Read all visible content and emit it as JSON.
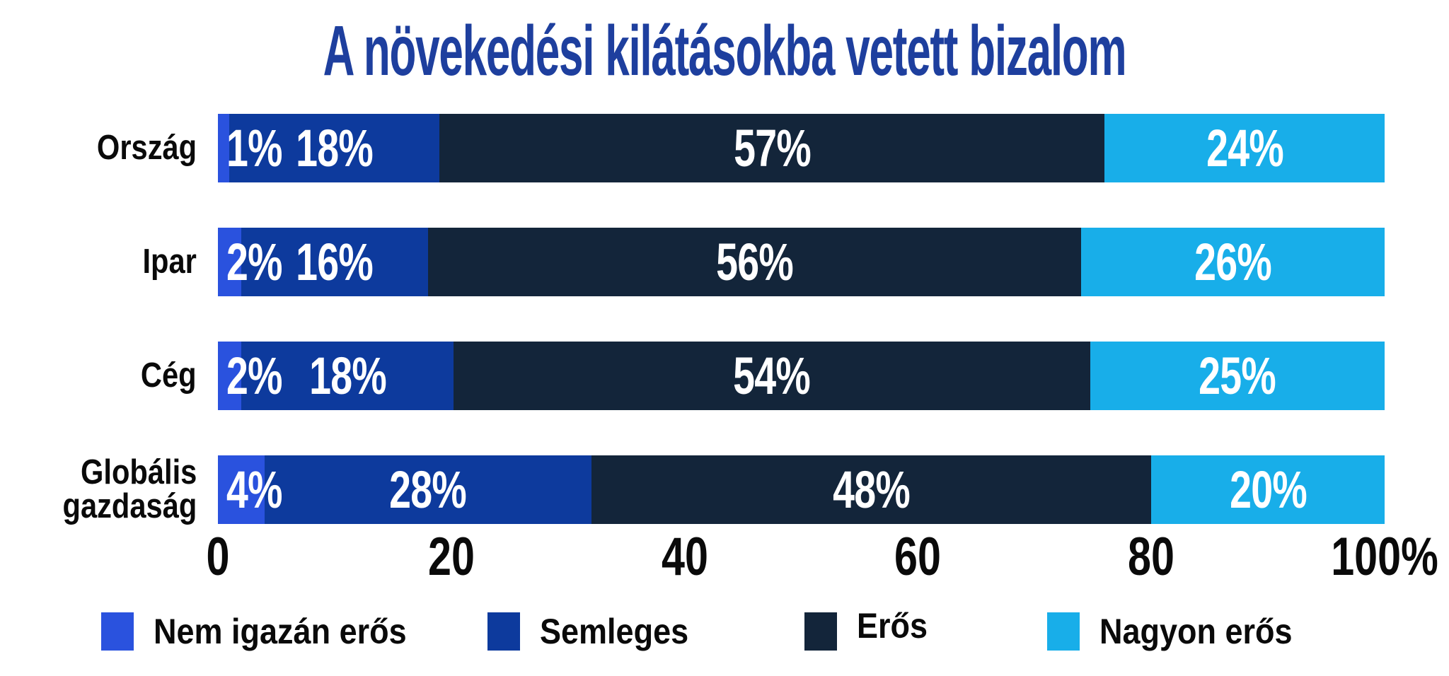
{
  "title": "A növekedési kilátásokba vetett bizalom",
  "title_color": "#1E3F9E",
  "chart_data": {
    "type": "bar",
    "variant": "horizontal-stacked",
    "title": "A növekedési kilátásokba vetett bizalom",
    "categories": [
      "Ország",
      "Ipar",
      "Cég",
      "Globális\ngazdaság"
    ],
    "series": [
      {
        "name": "Nem igazán erős",
        "color": "#2A52DE",
        "values": [
          1,
          2,
          2,
          4
        ]
      },
      {
        "name": "Semleges",
        "color": "#0D3A9D",
        "values": [
          18,
          16,
          18,
          28
        ]
      },
      {
        "name": "Erős",
        "color": "#13253A",
        "values": [
          57,
          56,
          54,
          48
        ]
      },
      {
        "name": "Nagyon erős",
        "color": "#18AEE9",
        "values": [
          24,
          26,
          25,
          20
        ]
      }
    ],
    "data_labels": [
      [
        "1%",
        "18%",
        "57%",
        "24%"
      ],
      [
        "2%",
        "16%",
        "56%",
        "26%"
      ],
      [
        "2%",
        "18%",
        "54%",
        "25%"
      ],
      [
        "4%",
        "28%",
        "48%",
        "20%"
      ]
    ],
    "value_label_color": "#FFFFFF",
    "x_axis_ticks": [
      "0",
      "20",
      "40",
      "60",
      "80",
      "100%"
    ],
    "x_tick_positions": [
      0,
      20,
      40,
      60,
      80,
      100
    ],
    "x_range": [
      0,
      100
    ],
    "grid": false,
    "legend_position": "bottom",
    "legend": [
      "Nem igazán erős",
      "Semleges",
      "Erős",
      "Nagyon erős"
    ],
    "axis_text_color": "#0A0A0A",
    "category_text_color": "#0A0A0A",
    "background_color": "#FFFFFF"
  }
}
